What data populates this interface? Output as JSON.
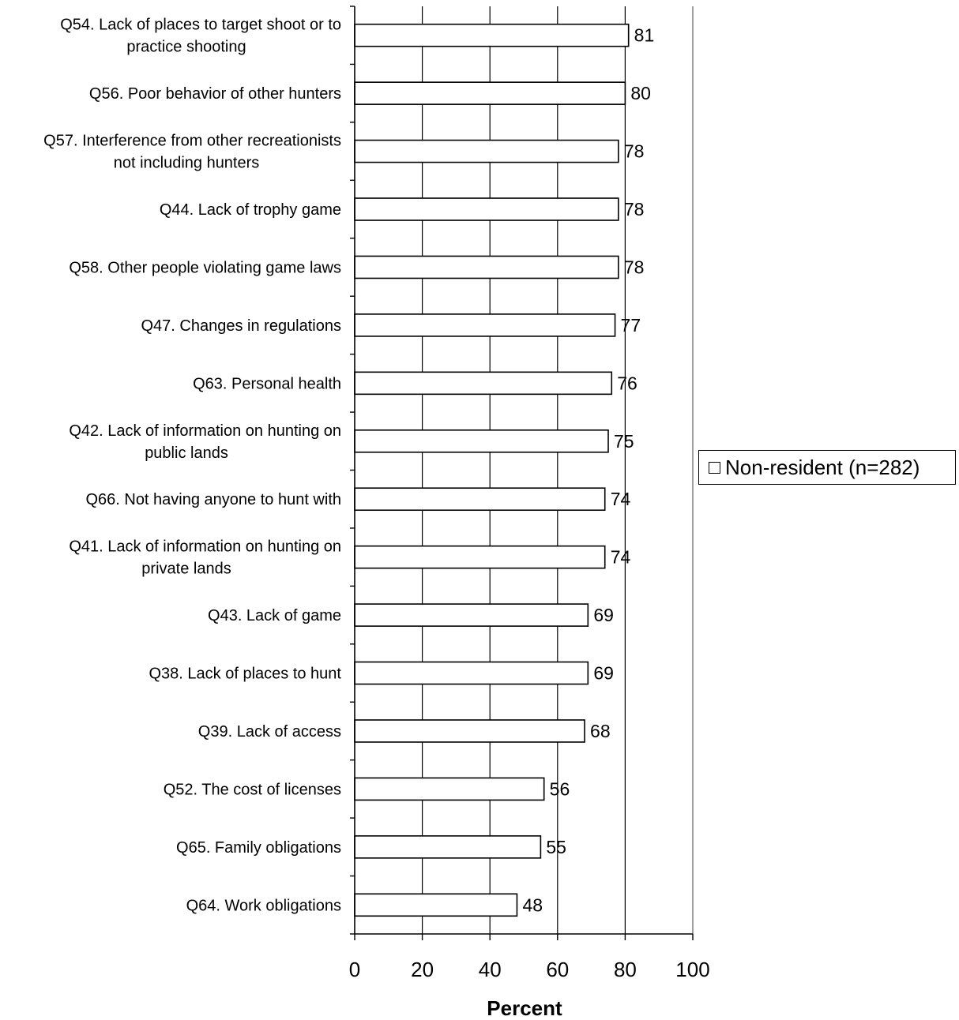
{
  "chart_data": {
    "type": "bar",
    "orientation": "horizontal",
    "categories": [
      [
        "Q54. Lack of places to target shoot or to",
        "practice shooting"
      ],
      [
        "Q56. Poor behavior of other hunters"
      ],
      [
        "Q57. Interference from other recreationists",
        "not including hunters"
      ],
      [
        "Q44. Lack of trophy game"
      ],
      [
        "Q58. Other people violating game laws"
      ],
      [
        "Q47. Changes in regulations"
      ],
      [
        "Q63. Personal health"
      ],
      [
        "Q42. Lack of information on hunting on",
        "public lands"
      ],
      [
        "Q66. Not having anyone to hunt with"
      ],
      [
        "Q41. Lack of information on hunting on",
        "private lands"
      ],
      [
        "Q43. Lack of game"
      ],
      [
        "Q38. Lack of places to hunt"
      ],
      [
        "Q39. Lack of access"
      ],
      [
        "Q52. The cost of licenses"
      ],
      [
        "Q65. Family obligations"
      ],
      [
        "Q64. Work obligations"
      ]
    ],
    "series": [
      {
        "name": "Non-resident (n=282)",
        "color": "#ffffff",
        "values": [
          81,
          80,
          78,
          78,
          78,
          77,
          76,
          75,
          74,
          74,
          69,
          69,
          68,
          56,
          55,
          48
        ],
        "value_labels": [
          "81",
          "80",
          "78",
          "78",
          "78",
          "77",
          "76",
          "75",
          "74",
          "74",
          "69",
          "69",
          "68",
          "56",
          "55",
          "48"
        ]
      }
    ],
    "xlabel": "Percent",
    "xlim": [
      0,
      100
    ],
    "xticks": [
      0,
      20,
      40,
      60,
      80,
      100
    ],
    "xtick_labels": [
      "0",
      "20",
      "40",
      "60",
      "80",
      "100"
    ],
    "grid": "vertical",
    "legend_position": "right"
  }
}
